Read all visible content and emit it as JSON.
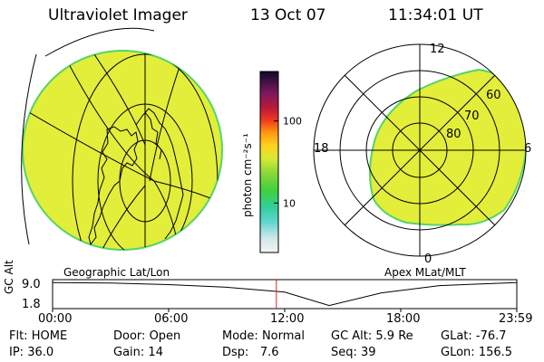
{
  "header": {
    "instrument": "Ultraviolet Imager",
    "date": "13 Oct 07",
    "time": "11:34:01 UT"
  },
  "panels": {
    "left_label": "Geographic Lat/Lon",
    "right_label": "Apex MLat/MLT"
  },
  "colorbar": {
    "unit_label": "photon cm⁻²s⁻¹",
    "ticks": [
      {
        "value": 100,
        "label": "100"
      },
      {
        "value": 10,
        "label": "10"
      }
    ],
    "range": [
      2.5,
      400
    ],
    "scale": "log"
  },
  "polar_plot": {
    "lat_labels": [
      "60",
      "70",
      "80"
    ],
    "mlt_labels": {
      "top": "12",
      "bottom": "0",
      "left": "18",
      "right": "6"
    }
  },
  "altitude_plot": {
    "ylabel": "GC Alt",
    "yticks": [
      "9.0",
      "1.8"
    ],
    "xticks": [
      "00:00",
      "06:00",
      "12:00",
      "18:00",
      "23:59"
    ],
    "marker_time_hours": 11.57,
    "curve": {
      "x_hours": [
        0,
        3,
        6,
        9,
        12,
        14.3,
        17,
        20,
        23.98
      ],
      "y_re": [
        8.95,
        8.8,
        8.3,
        7.5,
        6.0,
        1.9,
        5.8,
        8.0,
        8.95
      ]
    }
  },
  "status": {
    "row1": [
      {
        "label": "Flt:",
        "value": "HOME"
      },
      {
        "label": "Door:",
        "value": "Open"
      },
      {
        "label": "Mode:",
        "value": "Normal"
      },
      {
        "label": "GC Alt:",
        "value": "5.9 Re"
      },
      {
        "label": "GLat:",
        "value": "-76.7"
      }
    ],
    "row2": [
      {
        "label": "IP:",
        "value": "36.0"
      },
      {
        "label": "Gain:",
        "value": "14"
      },
      {
        "label": "Dsp:",
        "value": "7.6"
      },
      {
        "label": "Seq:",
        "value": "39"
      },
      {
        "label": "GLon:",
        "value": "156.5"
      }
    ]
  },
  "colors": {
    "emission_fill": "#e2ee3a",
    "emission_edge": "#54d466"
  }
}
